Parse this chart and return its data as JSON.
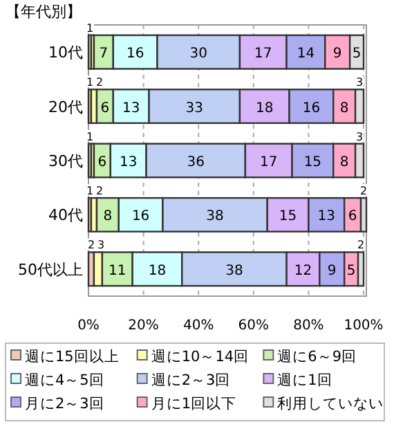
{
  "chart_data": {
    "type": "bar",
    "orientation": "horizontal",
    "stacked": true,
    "title": "【年代別】",
    "categories": [
      "10代",
      "20代",
      "30代",
      "40代",
      "50代以上"
    ],
    "series": [
      {
        "name": "週に15回以上",
        "color": "#f0c8b8",
        "values": [
          1,
          1,
          1,
          1,
          2
        ],
        "value_labels": [
          "1",
          "1",
          "1",
          "1",
          "2"
        ]
      },
      {
        "name": "週に10～14回",
        "color": "#ffffb0",
        "values": [
          1,
          2,
          1,
          2,
          3
        ],
        "value_labels": [
          null,
          "2",
          null,
          "2",
          "3"
        ]
      },
      {
        "name": "週に6～9回",
        "color": "#c8f0b0",
        "values": [
          7,
          6,
          6,
          8,
          11
        ],
        "value_labels": [
          "7",
          "6",
          "6",
          "8",
          "11"
        ]
      },
      {
        "name": "週に4～5回",
        "color": "#d0ffff",
        "values": [
          16,
          13,
          13,
          16,
          18
        ],
        "value_labels": [
          "16",
          "13",
          "13",
          "16",
          "18"
        ]
      },
      {
        "name": "週に2～3回",
        "color": "#c0d0f4",
        "values": [
          30,
          33,
          36,
          38,
          38
        ],
        "value_labels": [
          "30",
          "33",
          "36",
          "38",
          "38"
        ]
      },
      {
        "name": "週に1回",
        "color": "#d8b4f8",
        "values": [
          17,
          18,
          17,
          15,
          12
        ],
        "value_labels": [
          "17",
          "18",
          "17",
          "15",
          "12"
        ]
      },
      {
        "name": "月に2～3回",
        "color": "#acacf0",
        "values": [
          14,
          16,
          15,
          13,
          9
        ],
        "value_labels": [
          "14",
          "16",
          "15",
          "13",
          "9"
        ]
      },
      {
        "name": "月に1回以下",
        "color": "#ffa8c8",
        "values": [
          9,
          8,
          8,
          6,
          5
        ],
        "value_labels": [
          "9",
          "8",
          "8",
          "6",
          "5"
        ]
      },
      {
        "name": "利用していない",
        "color": "#e0e0e0",
        "values": [
          5,
          3,
          3,
          2,
          2
        ],
        "value_labels": [
          "5",
          "3",
          "3",
          "2",
          "2"
        ]
      }
    ],
    "xlim": [
      0,
      101
    ],
    "xticks": [
      {
        "value": 0,
        "label": "0%"
      },
      {
        "value": 20,
        "label": "20%"
      },
      {
        "value": 40,
        "label": "40%"
      },
      {
        "value": 60,
        "label": "60%"
      },
      {
        "value": 80,
        "label": "80%"
      },
      {
        "value": 100,
        "label": "100%"
      }
    ],
    "grid": "x",
    "legend": "bottom"
  }
}
